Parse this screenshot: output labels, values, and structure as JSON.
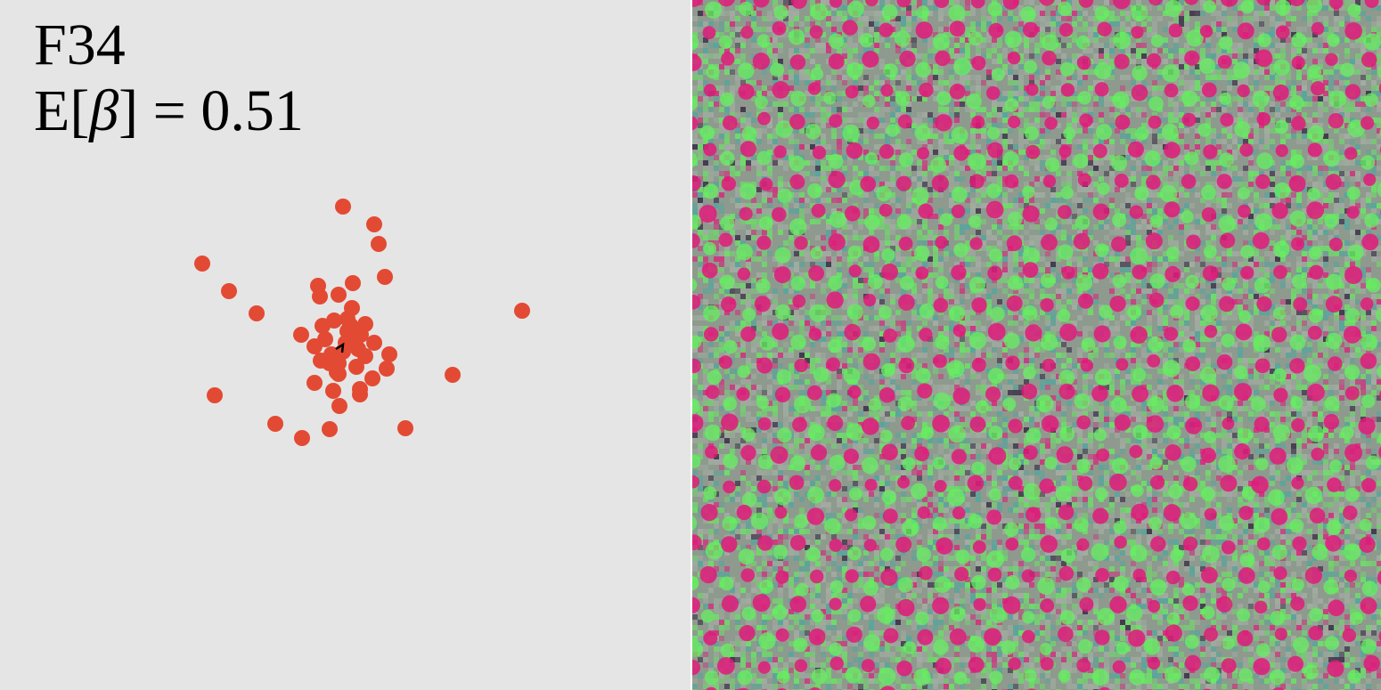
{
  "panel": {
    "feature_id": "F34",
    "stat_prefix": "E[",
    "stat_symbol": "β",
    "stat_suffix": "] = 0.51"
  },
  "chart_data": {
    "type": "scatter",
    "marker_color": "#e34a33",
    "direction_marker": "chevron-icon",
    "x": [
      385,
      420,
      425,
      227,
      257,
      432,
      396,
      357,
      380,
      359,
      288,
      586,
      338,
      353,
      410,
      375,
      395,
      437,
      434,
      508,
      418,
      353,
      374,
      404,
      404,
      381,
      241,
      309,
      339,
      370,
      455,
      385,
      398,
      390,
      370,
      410,
      380,
      400,
      388,
      372,
      420,
      390,
      365,
      402,
      380,
      393,
      360,
      378,
      405,
      362
    ],
    "y": [
      232,
      252,
      274,
      296,
      327,
      311,
      318,
      321,
      331,
      333,
      352,
      349,
      376,
      389,
      364,
      360,
      346,
      398,
      414,
      421,
      425,
      430,
      439,
      437,
      443,
      456,
      444,
      476,
      492,
      482,
      481,
      395,
      380,
      372,
      408,
      400,
      420,
      412,
      385,
      398,
      385,
      358,
      381,
      392,
      408,
      365,
      405,
      418,
      376,
      366
    ]
  },
  "texture": {
    "background_color": "#8e9a8e",
    "pink_color": "#e01a7a",
    "green_color": "#66f060",
    "teal_color": "#4aa8a0",
    "dark_color": "#2a1a3a"
  }
}
